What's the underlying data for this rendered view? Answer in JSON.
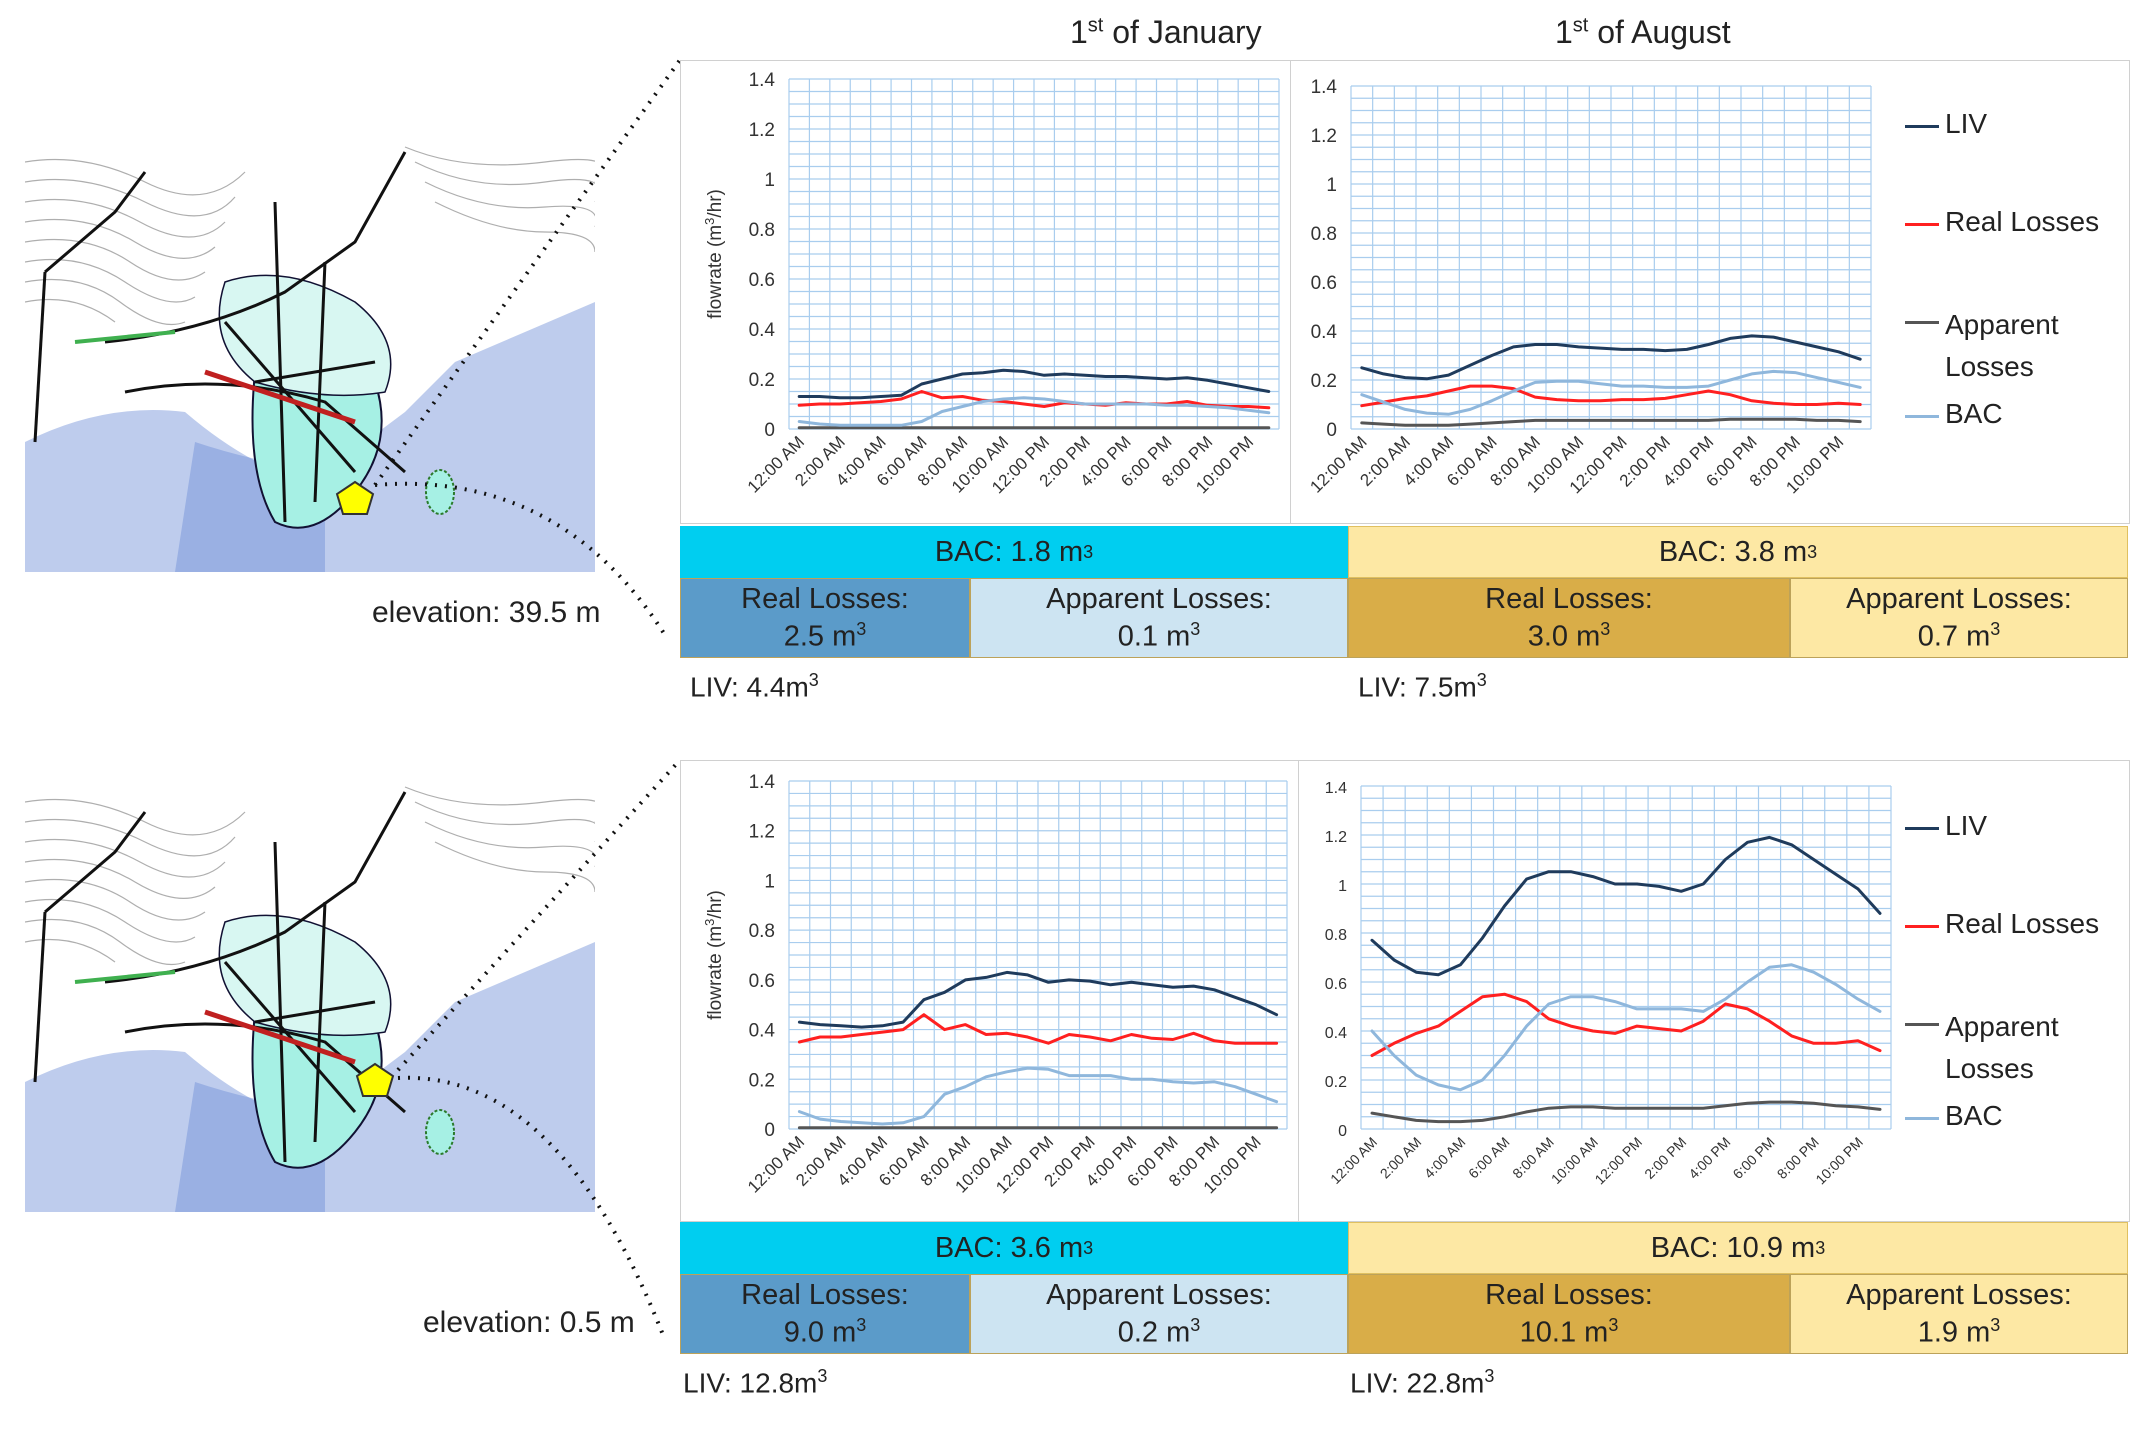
{
  "headers": {
    "jan_title": "1st of January",
    "aug_title": "1st of August",
    "jan_main": "1",
    "jan_sup": "st",
    "jan_rest": " of January",
    "aug_main": "1",
    "aug_sup": "st",
    "aug_rest": " of August"
  },
  "rows": [
    {
      "elevation": "elevation: 39.5 m",
      "jan": {
        "bac": "BAC: 1.8 m",
        "real_label": "Real Losses:",
        "real_value": "2.5 m",
        "apparent_label": "Apparent Losses:",
        "apparent_value": "0.1 m",
        "liv": "LIV: 4.4m"
      },
      "aug": {
        "bac": "BAC: 3.8 m",
        "real_label": "Real Losses:",
        "real_value": "3.0 m",
        "apparent_label": "Apparent Losses:",
        "apparent_value": "0.7 m",
        "liv": "LIV: 7.5m"
      }
    },
    {
      "elevation": "elevation: 0.5 m",
      "jan": {
        "bac": "BAC: 3.6 m",
        "real_label": "Real Losses:",
        "real_value": "9.0 m",
        "apparent_label": "Apparent Losses:",
        "apparent_value": "0.2 m",
        "liv": "LIV: 12.8m"
      },
      "aug": {
        "bac": "BAC: 10.9 m",
        "real_label": "Real Losses:",
        "real_value": "10.1 m",
        "apparent_label": "Apparent Losses:",
        "apparent_value": "1.9 m",
        "liv": "LIV: 22.8m"
      }
    }
  ],
  "unit_sup": "3",
  "legend": {
    "liv": "LIV",
    "real": "Real Losses",
    "apparent_1": "Apparent",
    "apparent_2": "Losses",
    "bac": "BAC"
  },
  "colors": {
    "liv": "#1f3b5c",
    "real": "#ff2020",
    "apparent": "#555555",
    "bac": "#8fb7dc",
    "grid": "#a9cdee",
    "jan_bac_bar": "#00cef0",
    "jan_real_cell": "#5b9bc9",
    "jan_apparent_cell": "#cde4f2",
    "aug_bac_bar": "#fde8a4",
    "aug_real_cell": "#d9ad48",
    "aug_apparent_cell": "#fde8a4"
  },
  "chart_data": [
    {
      "type": "line",
      "title": "",
      "ylabel": "flowrate (m3/hr)",
      "ylim": [
        0,
        1.4
      ],
      "yticks": [
        "0",
        "0.2",
        "0.4",
        "0.6",
        "0.8",
        "1",
        "1.2",
        "1.4"
      ],
      "xticks": [
        "12:00 AM",
        "2:00 AM",
        "4:00 AM",
        "6:00 AM",
        "8:00 AM",
        "10:00 AM",
        "12:00 PM",
        "2:00 PM",
        "4:00 PM",
        "6:00 PM",
        "8:00 PM",
        "10:00 PM"
      ],
      "x": [
        0,
        1,
        2,
        3,
        4,
        5,
        6,
        7,
        8,
        9,
        10,
        11,
        12,
        13,
        14,
        15,
        16,
        17,
        18,
        19,
        20,
        21,
        22,
        23
      ],
      "series": [
        {
          "name": "LIV",
          "values": [
            0.13,
            0.13,
            0.125,
            0.125,
            0.13,
            0.135,
            0.18,
            0.2,
            0.22,
            0.225,
            0.235,
            0.23,
            0.215,
            0.22,
            0.215,
            0.21,
            0.21,
            0.205,
            0.2,
            0.205,
            0.195,
            0.18,
            0.165,
            0.15
          ]
        },
        {
          "name": "Real Losses",
          "values": [
            0.095,
            0.1,
            0.1,
            0.105,
            0.11,
            0.12,
            0.15,
            0.125,
            0.13,
            0.115,
            0.11,
            0.1,
            0.09,
            0.105,
            0.1,
            0.095,
            0.105,
            0.1,
            0.1,
            0.11,
            0.095,
            0.09,
            0.09,
            0.085
          ]
        },
        {
          "name": "Apparent Losses",
          "values": [
            0.005,
            0.005,
            0.005,
            0.005,
            0.005,
            0.005,
            0.005,
            0.005,
            0.005,
            0.005,
            0.005,
            0.005,
            0.005,
            0.005,
            0.005,
            0.005,
            0.005,
            0.005,
            0.005,
            0.005,
            0.005,
            0.005,
            0.005,
            0.005
          ]
        },
        {
          "name": "BAC",
          "values": [
            0.03,
            0.02,
            0.015,
            0.015,
            0.015,
            0.015,
            0.03,
            0.07,
            0.09,
            0.11,
            0.12,
            0.125,
            0.12,
            0.11,
            0.1,
            0.1,
            0.1,
            0.1,
            0.095,
            0.095,
            0.09,
            0.085,
            0.075,
            0.065
          ]
        }
      ]
    },
    {
      "type": "line",
      "title": "",
      "ylabel": "",
      "ylim": [
        0,
        1.4
      ],
      "yticks": [
        "0",
        "0.2",
        "0.4",
        "0.6",
        "0.8",
        "1",
        "1.2",
        "1.4"
      ],
      "xticks": [
        "12:00 AM",
        "2:00 AM",
        "4:00 AM",
        "6:00 AM",
        "8:00 AM",
        "10:00 AM",
        "12:00 PM",
        "2:00 PM",
        "4:00 PM",
        "6:00 PM",
        "8:00 PM",
        "10:00 PM"
      ],
      "x": [
        0,
        1,
        2,
        3,
        4,
        5,
        6,
        7,
        8,
        9,
        10,
        11,
        12,
        13,
        14,
        15,
        16,
        17,
        18,
        19,
        20,
        21,
        22,
        23
      ],
      "series": [
        {
          "name": "LIV",
          "values": [
            0.25,
            0.225,
            0.21,
            0.205,
            0.22,
            0.26,
            0.3,
            0.335,
            0.345,
            0.345,
            0.335,
            0.33,
            0.325,
            0.325,
            0.32,
            0.325,
            0.345,
            0.37,
            0.38,
            0.375,
            0.355,
            0.335,
            0.315,
            0.285
          ]
        },
        {
          "name": "Real Losses",
          "values": [
            0.095,
            0.11,
            0.125,
            0.135,
            0.155,
            0.175,
            0.175,
            0.165,
            0.13,
            0.12,
            0.115,
            0.115,
            0.12,
            0.12,
            0.125,
            0.14,
            0.155,
            0.14,
            0.115,
            0.105,
            0.1,
            0.1,
            0.105,
            0.1
          ]
        },
        {
          "name": "Apparent Losses",
          "values": [
            0.025,
            0.02,
            0.015,
            0.015,
            0.015,
            0.02,
            0.025,
            0.03,
            0.035,
            0.035,
            0.035,
            0.035,
            0.035,
            0.035,
            0.035,
            0.035,
            0.035,
            0.04,
            0.04,
            0.04,
            0.04,
            0.035,
            0.035,
            0.03
          ]
        },
        {
          "name": "BAC",
          "values": [
            0.14,
            0.11,
            0.08,
            0.065,
            0.06,
            0.08,
            0.115,
            0.155,
            0.19,
            0.195,
            0.195,
            0.185,
            0.175,
            0.175,
            0.17,
            0.17,
            0.175,
            0.2,
            0.225,
            0.235,
            0.23,
            0.21,
            0.19,
            0.17
          ]
        }
      ]
    },
    {
      "type": "line",
      "title": "",
      "ylabel": "flowrate (m3/hr)",
      "ylim": [
        0,
        1.4
      ],
      "yticks": [
        "0",
        "0.2",
        "0.4",
        "0.6",
        "0.8",
        "1",
        "1.2",
        "1.4"
      ],
      "xticks": [
        "12:00 AM",
        "2:00 AM",
        "4:00 AM",
        "6:00 AM",
        "8:00 AM",
        "10:00 AM",
        "12:00 PM",
        "2:00 PM",
        "4:00 PM",
        "6:00 PM",
        "8:00 PM",
        "10:00 PM"
      ],
      "x": [
        0,
        1,
        2,
        3,
        4,
        5,
        6,
        7,
        8,
        9,
        10,
        11,
        12,
        13,
        14,
        15,
        16,
        17,
        18,
        19,
        20,
        21,
        22,
        23
      ],
      "series": [
        {
          "name": "LIV",
          "values": [
            0.43,
            0.42,
            0.415,
            0.41,
            0.415,
            0.43,
            0.52,
            0.55,
            0.6,
            0.61,
            0.63,
            0.62,
            0.59,
            0.6,
            0.595,
            0.58,
            0.59,
            0.58,
            0.57,
            0.575,
            0.56,
            0.53,
            0.5,
            0.46
          ]
        },
        {
          "name": "Real Losses",
          "values": [
            0.35,
            0.37,
            0.37,
            0.38,
            0.39,
            0.4,
            0.46,
            0.4,
            0.42,
            0.38,
            0.385,
            0.37,
            0.345,
            0.38,
            0.37,
            0.355,
            0.38,
            0.365,
            0.36,
            0.385,
            0.355,
            0.345,
            0.345,
            0.345
          ]
        },
        {
          "name": "Apparent Losses",
          "values": [
            0.005,
            0.005,
            0.005,
            0.005,
            0.005,
            0.005,
            0.005,
            0.005,
            0.005,
            0.005,
            0.005,
            0.005,
            0.005,
            0.005,
            0.005,
            0.005,
            0.005,
            0.005,
            0.005,
            0.005,
            0.005,
            0.005,
            0.005,
            0.005
          ]
        },
        {
          "name": "BAC",
          "values": [
            0.07,
            0.04,
            0.03,
            0.025,
            0.02,
            0.025,
            0.05,
            0.14,
            0.17,
            0.21,
            0.23,
            0.245,
            0.24,
            0.215,
            0.215,
            0.215,
            0.2,
            0.2,
            0.19,
            0.185,
            0.19,
            0.17,
            0.14,
            0.11
          ]
        }
      ]
    },
    {
      "type": "line",
      "title": "",
      "ylabel": "",
      "ylim": [
        0,
        1.4
      ],
      "yticks": [
        "0",
        "0.2",
        "0.4",
        "0.6",
        "0.8",
        "1",
        "1.2",
        "1.4"
      ],
      "xticks": [
        "12:00 AM",
        "2:00 AM",
        "4:00 AM",
        "6:00 AM",
        "8:00 AM",
        "10:00 AM",
        "12:00 PM",
        "2:00 PM",
        "4:00 PM",
        "6:00 PM",
        "8:00 PM",
        "10:00 PM"
      ],
      "x": [
        0,
        1,
        2,
        3,
        4,
        5,
        6,
        7,
        8,
        9,
        10,
        11,
        12,
        13,
        14,
        15,
        16,
        17,
        18,
        19,
        20,
        21,
        22,
        23
      ],
      "series": [
        {
          "name": "LIV",
          "values": [
            0.77,
            0.69,
            0.64,
            0.63,
            0.67,
            0.78,
            0.91,
            1.02,
            1.05,
            1.05,
            1.03,
            1.0,
            1.0,
            0.99,
            0.97,
            1.0,
            1.1,
            1.17,
            1.19,
            1.16,
            1.1,
            1.04,
            0.98,
            0.88
          ]
        },
        {
          "name": "Real Losses",
          "values": [
            0.3,
            0.35,
            0.39,
            0.42,
            0.48,
            0.54,
            0.55,
            0.52,
            0.45,
            0.42,
            0.4,
            0.39,
            0.42,
            0.41,
            0.4,
            0.44,
            0.51,
            0.49,
            0.44,
            0.38,
            0.35,
            0.35,
            0.36,
            0.32
          ]
        },
        {
          "name": "Apparent Losses",
          "values": [
            0.065,
            0.05,
            0.035,
            0.03,
            0.03,
            0.035,
            0.05,
            0.07,
            0.085,
            0.09,
            0.09,
            0.085,
            0.085,
            0.085,
            0.085,
            0.085,
            0.095,
            0.105,
            0.11,
            0.11,
            0.105,
            0.095,
            0.09,
            0.08
          ]
        },
        {
          "name": "BAC",
          "values": [
            0.4,
            0.3,
            0.22,
            0.18,
            0.16,
            0.2,
            0.3,
            0.42,
            0.51,
            0.54,
            0.54,
            0.52,
            0.49,
            0.49,
            0.49,
            0.48,
            0.53,
            0.6,
            0.66,
            0.67,
            0.64,
            0.59,
            0.53,
            0.48
          ]
        }
      ]
    }
  ]
}
